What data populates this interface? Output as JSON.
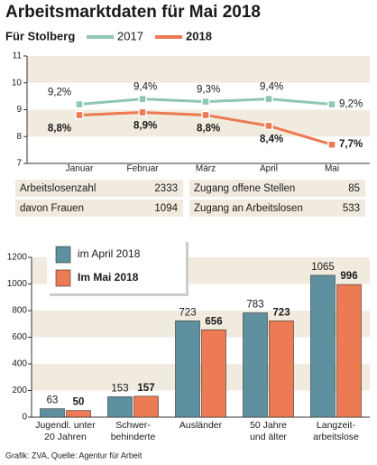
{
  "title": "Arbeitsmarktdaten für Mai 2018",
  "chart_data": [
    {
      "type": "line",
      "subtitle": "Für Stolberg",
      "categories": [
        "Januar",
        "Februar",
        "März",
        "April",
        "Mai"
      ],
      "series": [
        {
          "name": "2017",
          "color": "#8fc7b1",
          "values": [
            9.2,
            9.4,
            9.3,
            9.4,
            9.2
          ],
          "value_labels": [
            "9,2%",
            "9,4%",
            "9,3%",
            "9,4%",
            "9,2%"
          ]
        },
        {
          "name": "2018",
          "color": "#ec7a52",
          "values": [
            8.8,
            8.9,
            8.8,
            8.4,
            7.7
          ],
          "value_labels": [
            "8,8%",
            "8,9%",
            "8,8%",
            "8,4%",
            "7,7%"
          ]
        }
      ],
      "ylim": [
        7,
        11
      ],
      "yticks": [
        7,
        8,
        9,
        10,
        11
      ],
      "grid": true
    },
    {
      "type": "bar",
      "categories": [
        "Jugendl. unter\n20 Jahren",
        "Schwer-\nbehinderte",
        "Ausländer",
        "50 Jahre\nund älter",
        "Langzeit-\narbeitslose"
      ],
      "series": [
        {
          "name": "im April 2018",
          "color": "#5e909f",
          "values": [
            63,
            153,
            723,
            783,
            1065
          ]
        },
        {
          "name": "Im Mai 2018",
          "color": "#ec7a52",
          "values": [
            50,
            157,
            656,
            723,
            996
          ]
        }
      ],
      "ylim": [
        0,
        1200
      ],
      "yticks": [
        0,
        200,
        400,
        600,
        800,
        1000,
        1200
      ],
      "grid": true
    }
  ],
  "stats": [
    {
      "label": "Arbeitslosenzahl",
      "value": 2333
    },
    {
      "label": "davon Frauen",
      "value": 1094
    },
    {
      "label": "Zugang offene Stellen",
      "value": 85
    },
    {
      "label": "Zugang an Arbeitslosen",
      "value": 533
    }
  ],
  "source": "Grafik: ZVA, Quelle: Agentur für Arbeit"
}
